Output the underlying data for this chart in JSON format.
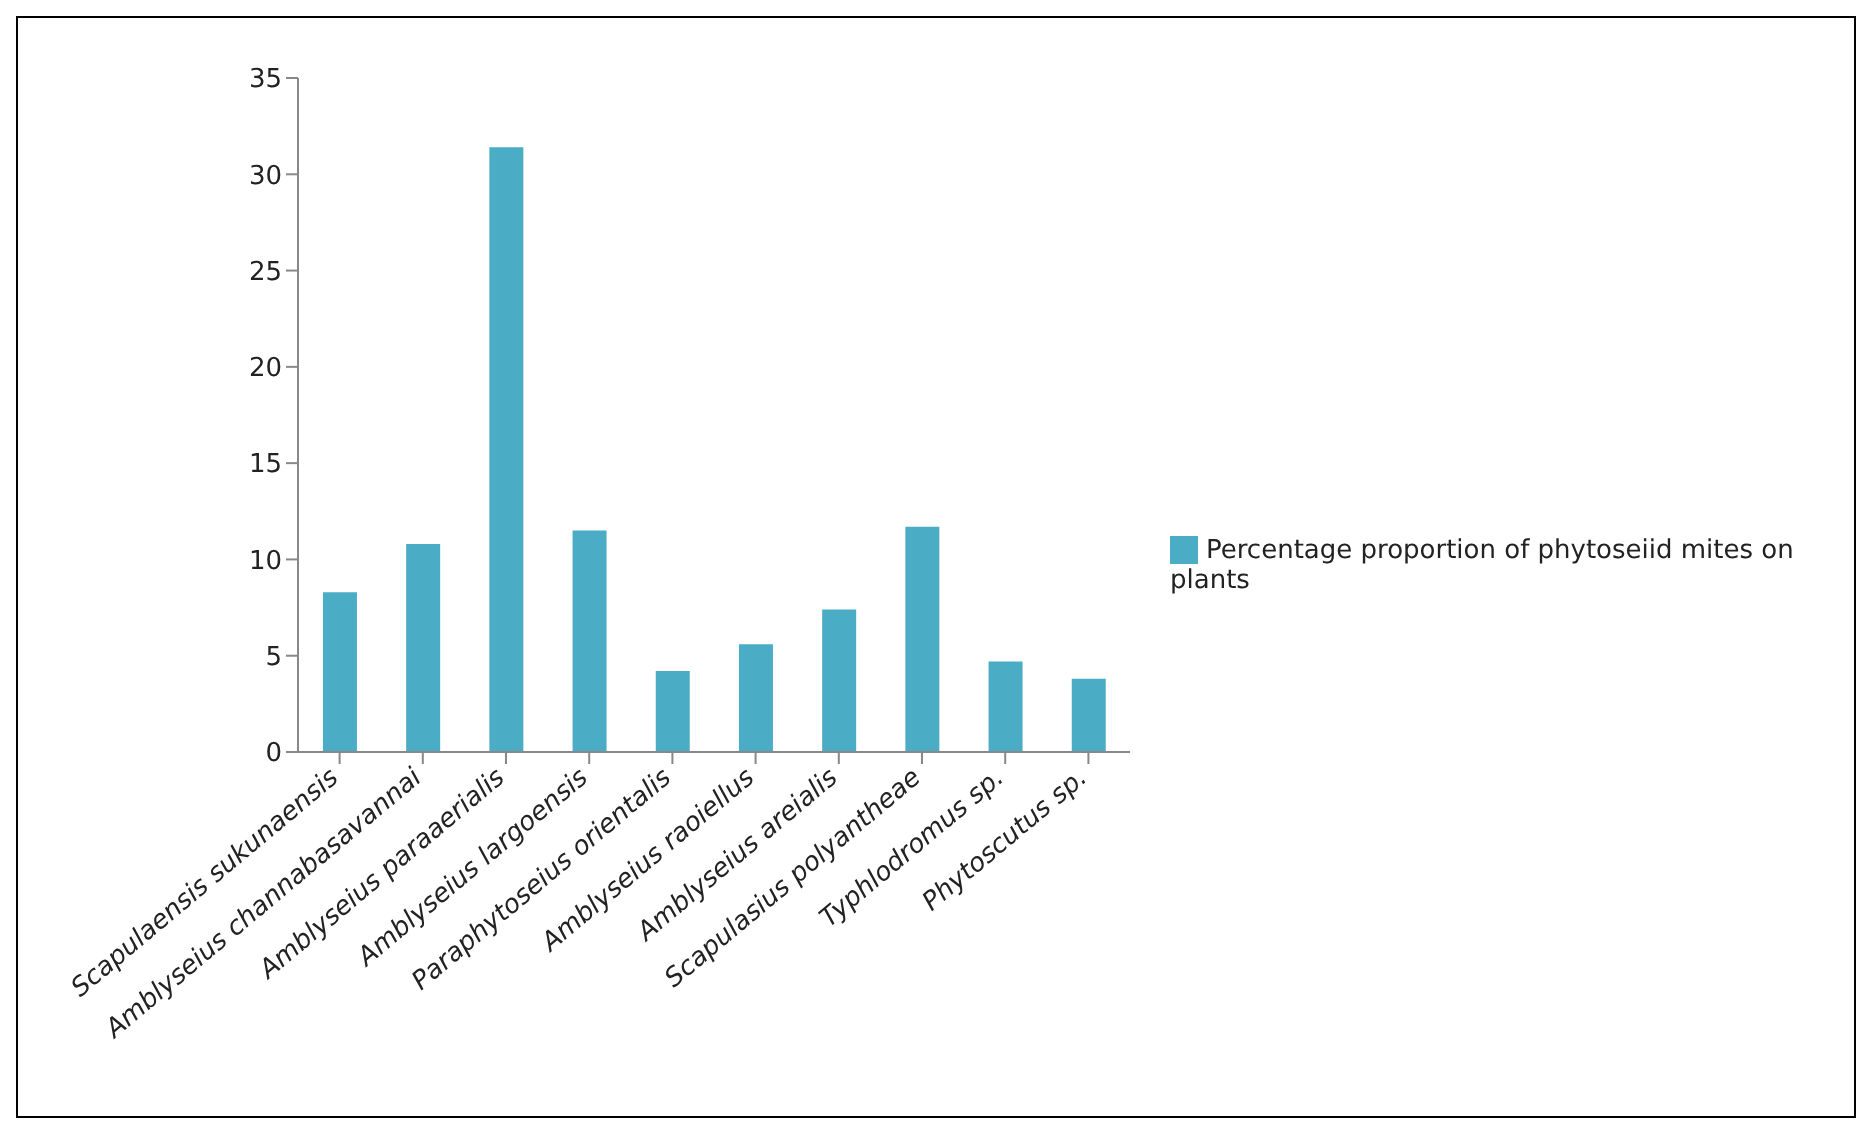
{
  "chart_data": {
    "type": "bar",
    "categories": [
      "Scapulaensis sukunaensis",
      "Amblyseius channabasavannai",
      "Amblyseius paraaerialis",
      "Amblyseius largoensis",
      "Paraphytoseius orientalis",
      "Amblyseius raoiellus",
      "Amblyseius areialis",
      "Scapulasius polyantheae",
      "Typhlodromus sp.",
      "Phytoscutus sp."
    ],
    "series": [
      {
        "name": "Percentage proportion of phytoseiid mites on plants",
        "color": "#4bacc6",
        "values": [
          8.3,
          10.8,
          31.4,
          11.5,
          4.2,
          5.6,
          7.4,
          11.7,
          4.7,
          3.8
        ]
      }
    ],
    "ylim": [
      0,
      35
    ],
    "yticks": [
      0,
      5,
      10,
      15,
      20,
      25,
      30,
      35
    ],
    "grid": false,
    "legend": "right"
  }
}
